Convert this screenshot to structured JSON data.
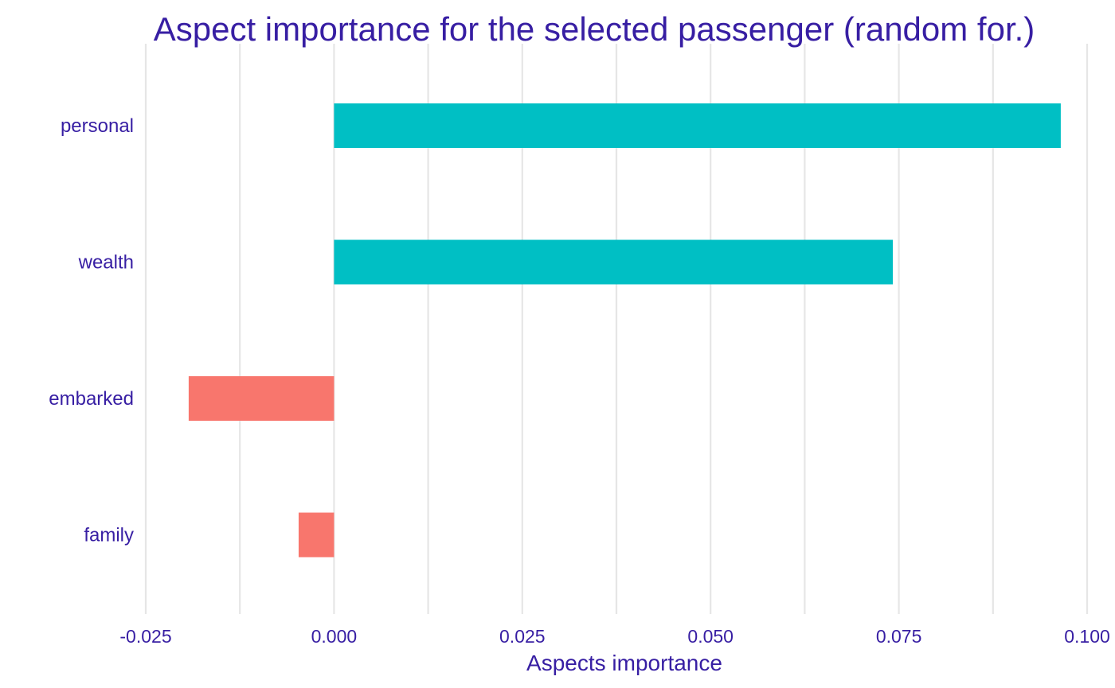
{
  "chart_data": {
    "type": "bar",
    "orientation": "horizontal",
    "title": "Aspect importance for the selected passenger (random for.)",
    "xlabel": "Aspects importance",
    "ylabel": "",
    "categories": [
      "personal",
      "wealth",
      "embarked",
      "family"
    ],
    "values": [
      0.0965,
      0.0742,
      -0.0193,
      -0.0047
    ],
    "xlim": [
      -0.025,
      0.1
    ],
    "xticks": [
      -0.025,
      0.0,
      0.025,
      0.05,
      0.075,
      0.1
    ],
    "xtick_labels": [
      "-0.025",
      "0.000",
      "0.025",
      "0.050",
      "0.075",
      "0.100"
    ],
    "grid": true,
    "legend": "none"
  },
  "colors": {
    "positive": "#00bfc4",
    "negative": "#f8766d",
    "text": "#371ea3",
    "grid": "#e6e6e6",
    "background": "#ffffff"
  }
}
